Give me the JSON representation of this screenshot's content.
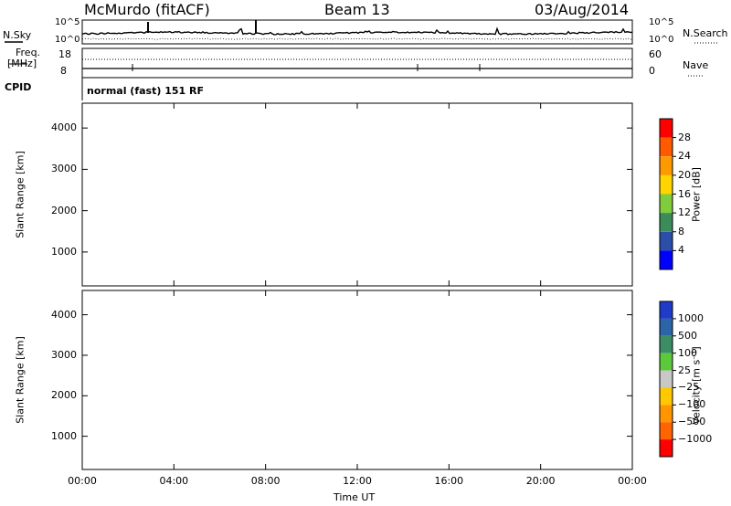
{
  "header": {
    "station": "McMurdo (fitACF)",
    "beam": "Beam 13",
    "date": "03/Aug/2014"
  },
  "params_panel": {
    "nsky_label": "N.Sky",
    "nsearch_label": "N.Search",
    "noise_ticks_left": [
      "10^5",
      "10^0"
    ],
    "noise_ticks_right": [
      "10^5",
      "10^0"
    ],
    "freq_label_1": "Freq.",
    "freq_label_2": "[MHz]",
    "freq_ticks": [
      "18",
      "8"
    ],
    "nave_label": "Nave",
    "nave_ticks": [
      "60",
      "0"
    ],
    "cpid_label": "CPID",
    "cpid_text": "normal (fast) 151 RF"
  },
  "chart_data": [
    {
      "type": "heatmap",
      "name": "power",
      "ylabel": "Slant Range [km]",
      "xlabel": "",
      "x_range_hours": [
        0,
        24
      ],
      "ylim": [
        180,
        4600
      ],
      "yticks": [
        "1000",
        "2000",
        "3000",
        "4000"
      ],
      "colorbar": {
        "label": "Power [dB]",
        "ticks": [
          "4",
          "8",
          "12",
          "16",
          "20",
          "24",
          "28"
        ],
        "colors": [
          "#0000ff",
          "#2b4fa8",
          "#3c8c5a",
          "#7fcc3c",
          "#ffd400",
          "#ff9900",
          "#ff5a00",
          "#ff0000"
        ]
      }
    },
    {
      "type": "heatmap",
      "name": "velocity",
      "ylabel": "Slant Range [km]",
      "xlabel": "Time UT",
      "x_range_hours": [
        0,
        24
      ],
      "xticks": [
        "00:00",
        "04:00",
        "08:00",
        "12:00",
        "16:00",
        "20:00",
        "00:00"
      ],
      "ylim": [
        180,
        4600
      ],
      "yticks": [
        "1000",
        "2000",
        "3000",
        "4000"
      ],
      "colorbar": {
        "label": "Velocity [m s⁻¹]",
        "ticks": [
          "1000",
          "500",
          "100",
          "25",
          "−25",
          "−100",
          "−500",
          "−1000"
        ],
        "colors": [
          "#1e3cc8",
          "#2c64a8",
          "#3c8c64",
          "#5cc83c",
          "#c8c8c8",
          "#ffc800",
          "#ff9600",
          "#ff6400",
          "#ff0000"
        ]
      }
    }
  ]
}
